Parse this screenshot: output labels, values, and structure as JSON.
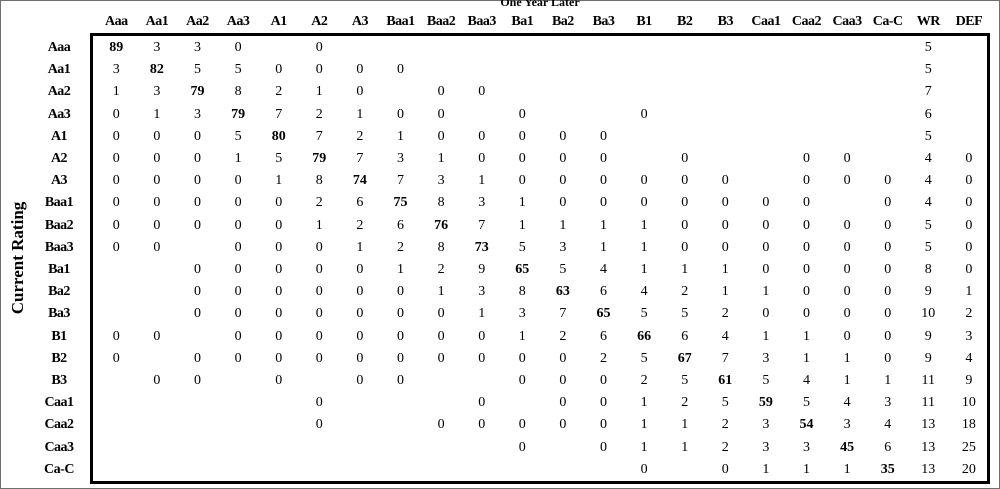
{
  "chart_data": {
    "type": "table",
    "title": "",
    "xlabel": "One Year Later",
    "ylabel": "Current Rating",
    "columns": [
      "Aaa",
      "Aa1",
      "Aa2",
      "Aa3",
      "A1",
      "A2",
      "A3",
      "Baa1",
      "Baa2",
      "Baa3",
      "Ba1",
      "Ba2",
      "Ba3",
      "B1",
      "B2",
      "B3",
      "Caa1",
      "Caa2",
      "Caa3",
      "Ca-C",
      "WR",
      "DEF"
    ],
    "rows": [
      {
        "label": "Aaa",
        "values": [
          "89",
          "3",
          "3",
          "0",
          "",
          "0",
          "",
          "",
          "",
          "",
          "",
          "",
          "",
          "",
          "",
          "",
          "",
          "",
          "",
          "",
          "5",
          ""
        ]
      },
      {
        "label": "Aa1",
        "values": [
          "3",
          "82",
          "5",
          "5",
          "0",
          "0",
          "0",
          "0",
          "",
          "",
          "",
          "",
          "",
          "",
          "",
          "",
          "",
          "",
          "",
          "",
          "5",
          ""
        ]
      },
      {
        "label": "Aa2",
        "values": [
          "1",
          "3",
          "79",
          "8",
          "2",
          "1",
          "0",
          "",
          "0",
          "0",
          "",
          "",
          "",
          "",
          "",
          "",
          "",
          "",
          "",
          "",
          "7",
          ""
        ]
      },
      {
        "label": "Aa3",
        "values": [
          "0",
          "1",
          "3",
          "79",
          "7",
          "2",
          "1",
          "0",
          "0",
          "",
          "0",
          "",
          "",
          "0",
          "",
          "",
          "",
          "",
          "",
          "",
          "6",
          ""
        ]
      },
      {
        "label": "A1",
        "values": [
          "0",
          "0",
          "0",
          "5",
          "80",
          "7",
          "2",
          "1",
          "0",
          "0",
          "0",
          "0",
          "0",
          "",
          "",
          "",
          "",
          "",
          "",
          "",
          "5",
          ""
        ]
      },
      {
        "label": "A2",
        "values": [
          "0",
          "0",
          "0",
          "1",
          "5",
          "79",
          "7",
          "3",
          "1",
          "0",
          "0",
          "0",
          "0",
          "",
          "0",
          "",
          "",
          "0",
          "0",
          "",
          "4",
          "0"
        ]
      },
      {
        "label": "A3",
        "values": [
          "0",
          "0",
          "0",
          "0",
          "1",
          "8",
          "74",
          "7",
          "3",
          "1",
          "0",
          "0",
          "0",
          "0",
          "0",
          "0",
          "",
          "0",
          "0",
          "0",
          "4",
          "0"
        ]
      },
      {
        "label": "Baa1",
        "values": [
          "0",
          "0",
          "0",
          "0",
          "0",
          "2",
          "6",
          "75",
          "8",
          "3",
          "1",
          "0",
          "0",
          "0",
          "0",
          "0",
          "0",
          "0",
          "",
          "0",
          "4",
          "0"
        ]
      },
      {
        "label": "Baa2",
        "values": [
          "0",
          "0",
          "0",
          "0",
          "0",
          "1",
          "2",
          "6",
          "76",
          "7",
          "1",
          "1",
          "1",
          "1",
          "0",
          "0",
          "0",
          "0",
          "0",
          "0",
          "5",
          "0"
        ]
      },
      {
        "label": "Baa3",
        "values": [
          "0",
          "0",
          "",
          "0",
          "0",
          "0",
          "1",
          "2",
          "8",
          "73",
          "5",
          "3",
          "1",
          "1",
          "0",
          "0",
          "0",
          "0",
          "0",
          "0",
          "5",
          "0"
        ]
      },
      {
        "label": "Ba1",
        "values": [
          "",
          "",
          "0",
          "0",
          "0",
          "0",
          "0",
          "1",
          "2",
          "9",
          "65",
          "5",
          "4",
          "1",
          "1",
          "1",
          "0",
          "0",
          "0",
          "0",
          "8",
          "0"
        ]
      },
      {
        "label": "Ba2",
        "values": [
          "",
          "",
          "0",
          "0",
          "0",
          "0",
          "0",
          "0",
          "1",
          "3",
          "8",
          "63",
          "6",
          "4",
          "2",
          "1",
          "1",
          "0",
          "0",
          "0",
          "9",
          "1"
        ]
      },
      {
        "label": "Ba3",
        "values": [
          "",
          "",
          "0",
          "0",
          "0",
          "0",
          "0",
          "0",
          "0",
          "1",
          "3",
          "7",
          "65",
          "5",
          "5",
          "2",
          "0",
          "0",
          "0",
          "0",
          "10",
          "2"
        ]
      },
      {
        "label": "B1",
        "values": [
          "0",
          "0",
          "",
          "0",
          "0",
          "0",
          "0",
          "0",
          "0",
          "0",
          "1",
          "2",
          "6",
          "66",
          "6",
          "4",
          "1",
          "1",
          "0",
          "0",
          "9",
          "3"
        ]
      },
      {
        "label": "B2",
        "values": [
          "0",
          "",
          "0",
          "0",
          "0",
          "0",
          "0",
          "0",
          "0",
          "0",
          "0",
          "0",
          "2",
          "5",
          "67",
          "7",
          "3",
          "1",
          "1",
          "0",
          "9",
          "4"
        ]
      },
      {
        "label": "B3",
        "values": [
          "",
          "0",
          "0",
          "",
          "0",
          "",
          "0",
          "0",
          "",
          "",
          "0",
          "0",
          "0",
          "2",
          "5",
          "61",
          "5",
          "4",
          "1",
          "1",
          "11",
          "9"
        ]
      },
      {
        "label": "Caa1",
        "values": [
          "",
          "",
          "",
          "",
          "",
          "0",
          "",
          "",
          "",
          "0",
          "",
          "0",
          "0",
          "1",
          "2",
          "5",
          "59",
          "5",
          "4",
          "3",
          "11",
          "10"
        ]
      },
      {
        "label": "Caa2",
        "values": [
          "",
          "",
          "",
          "",
          "",
          "0",
          "",
          "",
          "0",
          "0",
          "0",
          "0",
          "0",
          "1",
          "1",
          "2",
          "3",
          "54",
          "3",
          "4",
          "13",
          "18"
        ]
      },
      {
        "label": "Caa3",
        "values": [
          "",
          "",
          "",
          "",
          "",
          "",
          "",
          "",
          "",
          "",
          "0",
          "",
          "0",
          "1",
          "1",
          "2",
          "3",
          "3",
          "45",
          "6",
          "13",
          "25"
        ]
      },
      {
        "label": "Ca-C",
        "values": [
          "",
          "",
          "",
          "",
          "",
          "",
          "",
          "",
          "",
          "",
          "",
          "",
          "",
          "0",
          "",
          "0",
          "1",
          "1",
          "1",
          "35",
          "13",
          "20"
        ]
      }
    ]
  }
}
